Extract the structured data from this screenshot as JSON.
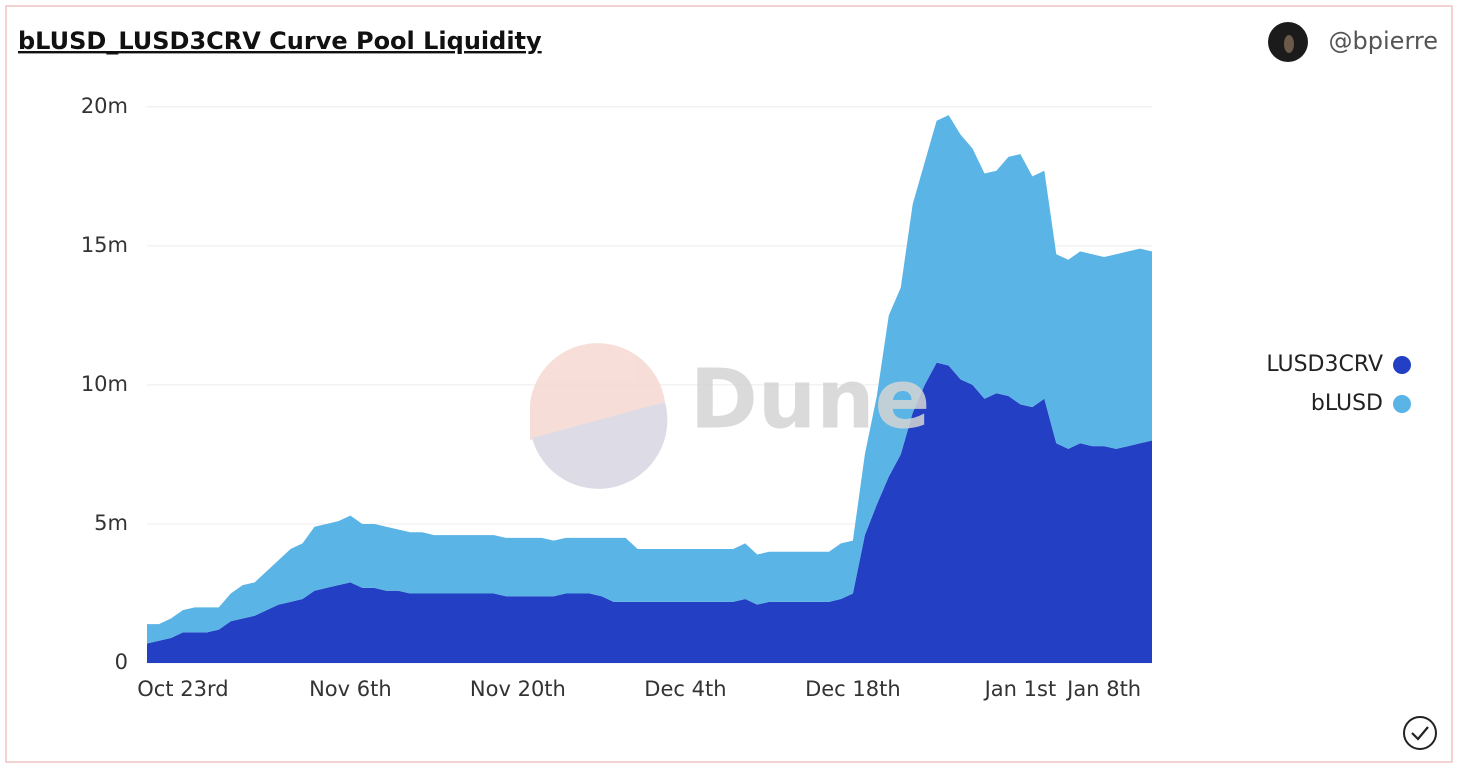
{
  "chart_data": {
    "type": "stacked-area",
    "title": "bLUSD_LUSD3CRV Curve Pool Liquidity",
    "author": "@bpierre",
    "watermark": "Dune",
    "categories": [
      null,
      null,
      null,
      "Oct 23rd",
      null,
      null,
      null,
      null,
      null,
      null,
      null,
      null,
      null,
      null,
      null,
      null,
      null,
      "Nov 6th",
      null,
      null,
      null,
      null,
      null,
      null,
      null,
      null,
      null,
      null,
      null,
      null,
      null,
      "Nov 20th",
      null,
      null,
      null,
      null,
      null,
      null,
      null,
      null,
      null,
      null,
      null,
      null,
      null,
      "Dec 4th",
      null,
      null,
      null,
      null,
      null,
      null,
      null,
      null,
      null,
      null,
      null,
      null,
      null,
      "Dec 18th",
      null,
      null,
      null,
      null,
      null,
      null,
      null,
      null,
      null,
      null,
      null,
      null,
      null,
      "Jan 1st",
      null,
      null,
      null,
      null,
      null,
      null,
      "Jan 8th",
      null,
      null,
      null,
      null
    ],
    "series": [
      {
        "name": "LUSD3CRV",
        "color": "#2340c4",
        "values": [
          0.7,
          0.8,
          0.9,
          1.1,
          1.1,
          1.1,
          1.2,
          1.5,
          1.6,
          1.7,
          1.9,
          2.1,
          2.2,
          2.3,
          2.6,
          2.7,
          2.8,
          2.9,
          2.7,
          2.7,
          2.6,
          2.6,
          2.5,
          2.5,
          2.5,
          2.5,
          2.5,
          2.5,
          2.5,
          2.5,
          2.4,
          2.4,
          2.4,
          2.4,
          2.4,
          2.5,
          2.5,
          2.5,
          2.4,
          2.2,
          2.2,
          2.2,
          2.2,
          2.2,
          2.2,
          2.2,
          2.2,
          2.2,
          2.2,
          2.2,
          2.3,
          2.1,
          2.2,
          2.2,
          2.2,
          2.2,
          2.2,
          2.2,
          2.3,
          2.5,
          4.6,
          5.7,
          6.7,
          7.5,
          9.0,
          10.0,
          10.8,
          10.7,
          10.2,
          10.0,
          9.5,
          9.7,
          9.6,
          9.3,
          9.2,
          9.5,
          7.9,
          7.7,
          7.9,
          7.8,
          7.8,
          7.7,
          7.8,
          7.9,
          8.0
        ]
      },
      {
        "name": "bLUSD",
        "color": "#5ab4e5",
        "values": [
          0.7,
          0.6,
          0.7,
          0.8,
          0.9,
          0.9,
          0.8,
          1.0,
          1.2,
          1.2,
          1.4,
          1.6,
          1.9,
          2.0,
          2.3,
          2.3,
          2.3,
          2.4,
          2.3,
          2.3,
          2.3,
          2.2,
          2.2,
          2.2,
          2.1,
          2.1,
          2.1,
          2.1,
          2.1,
          2.1,
          2.1,
          2.1,
          2.1,
          2.1,
          2.0,
          2.0,
          2.0,
          2.0,
          2.1,
          2.3,
          2.3,
          1.9,
          1.9,
          1.9,
          1.9,
          1.9,
          1.9,
          1.9,
          1.9,
          1.9,
          2.0,
          1.8,
          1.8,
          1.8,
          1.8,
          1.8,
          1.8,
          1.8,
          2.0,
          1.9,
          2.9,
          3.9,
          5.8,
          6.0,
          7.5,
          8.0,
          8.7,
          9.0,
          8.8,
          8.5,
          8.1,
          8.0,
          8.6,
          9.0,
          8.3,
          8.2,
          6.8,
          6.8,
          6.9,
          6.9,
          6.8,
          7.0,
          7.0,
          7.0,
          6.8
        ]
      }
    ],
    "ylim": [
      0,
      21
    ],
    "yticks": [
      0,
      {
        "value": 5,
        "label": "5m"
      },
      {
        "value": 10,
        "label": "10m"
      },
      {
        "value": 15,
        "label": "15m"
      },
      {
        "value": 20,
        "label": "20m"
      }
    ],
    "grid": true,
    "legend": "right"
  }
}
